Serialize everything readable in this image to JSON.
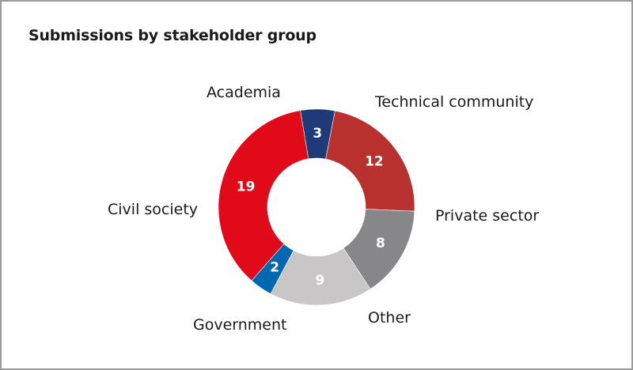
{
  "chart_data": {
    "type": "pie",
    "variant": "donut",
    "title": "Submissions by stakeholder group",
    "total": 53,
    "start_angle_deg": -9.5,
    "direction": "clockwise",
    "categories": [
      "Academia",
      "Technical community",
      "Private sector",
      "Other",
      "Government",
      "Civil society"
    ],
    "values": [
      3,
      12,
      8,
      9,
      2,
      19
    ],
    "colors": [
      "#1f3a78",
      "#b8312f",
      "#87878a",
      "#c8c6c7",
      "#0067b1",
      "#e10a18"
    ],
    "data_labels": [
      "3",
      "12",
      "8",
      "9",
      "2",
      "19"
    ],
    "legend": "none (labels placed outside slices)"
  },
  "labels": {
    "academia": "Academia",
    "technical": "Technical community",
    "private": "Private sector",
    "other": "Other",
    "government": "Government",
    "civil": "Civil society"
  }
}
